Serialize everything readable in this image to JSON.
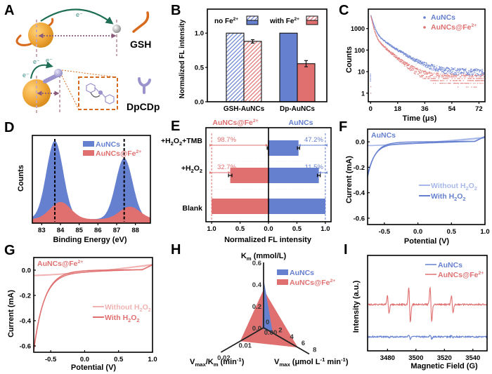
{
  "colors": {
    "blue": "#6680d0",
    "red": "#e07070",
    "blue_light": "#a9b8ea",
    "red_light": "#f1b2b2",
    "orange": "#d86a1e",
    "gold": "#f0a83a",
    "green": "#1d6e55",
    "purple": "#9a93cc",
    "pink_dash": "#c8a9b3"
  },
  "panels": {
    "A": {
      "letter": "A",
      "electron": "e⁻",
      "label_gsh": "GSH",
      "label_dpcdp": "DpCDp"
    }
  },
  "chart_data": [
    {
      "panel": "B",
      "type": "bar",
      "title": "",
      "ylabel": "Normalized FL intensity",
      "xlabel": "",
      "categories": [
        "GSH-AuNCs",
        "Dp-AuNCs"
      ],
      "series": [
        {
          "name": "no Fe2+",
          "values": [
            1.0,
            1.0
          ],
          "errors": [
            0,
            0
          ]
        },
        {
          "name": "with Fe2+",
          "values": [
            0.88,
            0.555
          ],
          "errors": [
            0.025,
            0.045
          ]
        }
      ],
      "hatched": [
        "GSH-AuNCs"
      ],
      "legend": [
        {
          "label": "no Fe",
          "sup": "2+"
        },
        {
          "label": "with Fe",
          "sup": "2+"
        }
      ],
      "ylim": [
        0,
        1.35
      ],
      "yticks": [
        0.0,
        0.5,
        1.0
      ],
      "ytick_labels": [
        "0.0",
        "0.5",
        "1.0"
      ],
      "legend_position": "top"
    },
    {
      "panel": "C",
      "type": "scatter",
      "ylabel": "Counts",
      "xlabel": "Time (μs)",
      "yscale": "log",
      "ylim": [
        0.4,
        8000
      ],
      "xlim": [
        -1.5,
        76
      ],
      "xticks": [
        0,
        18,
        36,
        54,
        72
      ],
      "yticks": [
        1,
        10,
        100,
        1000
      ],
      "series": [
        {
          "name": "AuNCs",
          "decay": {
            "A1": 3500,
            "tau1": 1.5,
            "A2": 700,
            "tau2": 9,
            "baseline": 10
          }
        },
        {
          "name": "AuNCs@Fe2+",
          "decay": {
            "A1": 3500,
            "tau1": 1.2,
            "A2": 500,
            "tau2": 7,
            "baseline": 5
          }
        }
      ],
      "legend": [
        {
          "label": "AuNCs",
          "sup": ""
        },
        {
          "label": "AuNCs@Fe",
          "sup": "2+"
        }
      ],
      "legend_position": "top-right"
    },
    {
      "panel": "D",
      "type": "area",
      "ylabel": "Counts",
      "xlabel": "Binding Energy (eV)",
      "xlim": [
        82.5,
        88.8
      ],
      "xticks": [
        83,
        84,
        85,
        86,
        87,
        88
      ],
      "ylim": [
        0,
        1.12
      ],
      "series": [
        {
          "name": "AuNCs",
          "peaks": [
            {
              "center": 83.7,
              "height": 1.0,
              "width": 0.45
            },
            {
              "center": 87.4,
              "height": 0.78,
              "width": 0.45
            }
          ]
        },
        {
          "name": "AuNCs@Fe2+",
          "peaks": [
            {
              "center": 84.0,
              "height": 0.22,
              "width": 0.55
            },
            {
              "center": 87.7,
              "height": 0.16,
              "width": 0.55
            }
          ],
          "offset": 0.05
        }
      ],
      "reference_lines": [
        83.7,
        87.4
      ],
      "legend": [
        {
          "label": "AuNCs",
          "sup": ""
        },
        {
          "label": "AuNCs@Fe",
          "sup": "2+"
        }
      ],
      "legend_position": "top-right"
    },
    {
      "panel": "E",
      "type": "bar",
      "orientation": "horizontal-mirrored",
      "xlabel": "Normalized FL intensity",
      "categories": [
        "+H2O2+TMB",
        "+H2O2",
        "Blank"
      ],
      "category_labels": [
        [
          {
            "t": "+H",
            "s": ""
          },
          {
            "t": "2",
            "s": "sub"
          },
          {
            "t": "O",
            "s": ""
          },
          {
            "t": "2",
            "s": "sub"
          },
          {
            "t": "+TMB",
            "s": ""
          }
        ],
        [
          {
            "t": "+H",
            "s": ""
          },
          {
            "t": "2",
            "s": "sub"
          },
          {
            "t": "O",
            "s": ""
          },
          {
            "t": "2",
            "s": "sub"
          }
        ],
        [
          {
            "t": "Blank",
            "s": ""
          }
        ]
      ],
      "series": [
        {
          "name": "AuNCs@Fe2+",
          "side": "left",
          "values": [
            0.013,
            0.673,
            1.0
          ],
          "errors": [
            0.01,
            0.03,
            0
          ],
          "annotations": [
            "98.7%",
            "32.7%",
            ""
          ]
        },
        {
          "name": "AuNCs",
          "side": "right",
          "values": [
            0.528,
            0.885,
            1.0
          ],
          "errors": [
            0.02,
            0.025,
            0
          ],
          "annotations": [
            "47.2%",
            "11.5%",
            ""
          ]
        }
      ],
      "header_left": {
        "label": "AuNCs@Fe",
        "sup": "2+"
      },
      "header_right": {
        "label": "AuNCs",
        "sup": ""
      },
      "xlim": [
        -1.1,
        1.1
      ],
      "xticks": [
        -1.0,
        -0.5,
        0.0,
        0.5,
        1.0
      ],
      "xtick_labels": [
        "1.0",
        "0.5",
        "0.0",
        "0.5",
        "1.0"
      ]
    },
    {
      "panel": "F",
      "type": "line",
      "ylabel": "Current (mA)",
      "xlabel": "Potential (V)",
      "xlim": [
        -0.75,
        1.0
      ],
      "ylim": [
        -0.65,
        0.1
      ],
      "xticks": [
        -0.5,
        0.0,
        0.5,
        1.0
      ],
      "yticks": [
        0.0,
        -0.2,
        -0.4,
        -0.6
      ],
      "inset_label": "AuNCs",
      "series": [
        {
          "name": "Without H2O2",
          "cv": {
            "min": -0.03,
            "minB": -0.035,
            "end": 0.03,
            "k": 0.0
          }
        },
        {
          "name": "With H2O2",
          "cv": {
            "min": -0.27,
            "minB": -0.25,
            "end": 0.03,
            "k": 1.0
          }
        }
      ],
      "legend": [
        {
          "parts": [
            {
              "t": "Without H",
              "s": ""
            },
            {
              "t": "2",
              "s": "sub"
            },
            {
              "t": "O",
              "s": ""
            },
            {
              "t": "2",
              "s": "sub"
            }
          ]
        },
        {
          "parts": [
            {
              "t": "With H",
              "s": ""
            },
            {
              "t": "2",
              "s": "sub"
            },
            {
              "t": "O",
              "s": ""
            },
            {
              "t": "2",
              "s": "sub"
            }
          ]
        }
      ],
      "legend_position": "center-right"
    },
    {
      "panel": "G",
      "type": "line",
      "ylabel": "Current (mA)",
      "xlabel": "Potential (V)",
      "xlim": [
        -0.75,
        1.0
      ],
      "ylim": [
        -0.65,
        0.1
      ],
      "xticks": [
        -0.5,
        0.0,
        0.5,
        1.0
      ],
      "yticks": [
        0.0,
        -0.2,
        -0.4,
        -0.6
      ],
      "inset_label": {
        "label": "AuNCs@Fe",
        "sup": "2+"
      },
      "series": [
        {
          "name": "Without H2O2",
          "cv": {
            "min": -0.04,
            "minB": -0.05,
            "end": 0.04,
            "k": 0.0
          }
        },
        {
          "name": "With H2O2",
          "cv": {
            "min": -0.64,
            "minB": -0.62,
            "end": 0.04,
            "k": 2.0
          }
        }
      ],
      "legend": [
        {
          "parts": [
            {
              "t": "Without H",
              "s": ""
            },
            {
              "t": "2",
              "s": "sub"
            },
            {
              "t": "O",
              "s": ""
            },
            {
              "t": "2",
              "s": "sub"
            }
          ]
        },
        {
          "parts": [
            {
              "t": "With H",
              "s": ""
            },
            {
              "t": "2",
              "s": "sub"
            },
            {
              "t": "O",
              "s": ""
            },
            {
              "t": "2",
              "s": "sub"
            }
          ]
        }
      ],
      "legend_position": "center-right"
    },
    {
      "panel": "H",
      "type": "radar",
      "axes": [
        {
          "name": "Km (mmol/L)",
          "parts": [
            {
              "t": "K",
              "s": ""
            },
            {
              "t": "m",
              "s": "sub"
            },
            {
              "t": " (mmol/L)",
              "s": ""
            }
          ],
          "max": 0.6,
          "ticks": [
            0.0,
            0.2,
            0.4,
            0.6
          ],
          "tick_labels": [
            "0.0",
            "0.2",
            "0.4",
            "0.6"
          ]
        },
        {
          "name": "Vmax (μmol L-1 min-1)",
          "parts": [
            {
              "t": "V",
              "s": ""
            },
            {
              "t": "max",
              "s": "sub"
            },
            {
              "t": " (μmol L",
              "s": ""
            },
            {
              "t": "-1",
              "s": "sup"
            },
            {
              "t": " min",
              "s": ""
            },
            {
              "t": "-1",
              "s": "sup"
            },
            {
              "t": ")",
              "s": ""
            }
          ],
          "max": 8,
          "ticks": [
            0,
            2,
            4,
            6,
            8
          ],
          "tick_labels": [
            "0",
            "2",
            "4",
            "6",
            "8"
          ]
        },
        {
          "name": "Vmax/Km (min-1)",
          "parts": [
            {
              "t": "V",
              "s": ""
            },
            {
              "t": "max",
              "s": "sub"
            },
            {
              "t": "/K",
              "s": ""
            },
            {
              "t": "m",
              "s": "sub"
            },
            {
              "t": " (min",
              "s": ""
            },
            {
              "t": "-1",
              "s": "sup"
            },
            {
              "t": ")",
              "s": ""
            }
          ],
          "max": 0.02,
          "ticks": [
            0.0,
            0.01,
            0.02
          ],
          "tick_labels": [
            "0.00",
            "0.01",
            "0.02"
          ]
        }
      ],
      "series": [
        {
          "name": "AuNCs@Fe2+",
          "values": [
            0.35,
            6.0,
            0.011
          ]
        },
        {
          "name": "AuNCs",
          "values": [
            0.45,
            1.6,
            0.0006
          ]
        }
      ],
      "legend": [
        {
          "label": "AuNCs",
          "sup": ""
        },
        {
          "label": "AuNCs@Fe",
          "sup": "2+"
        }
      ],
      "legend_position": "top-right"
    },
    {
      "panel": "I",
      "type": "line",
      "ylabel": "Intensity (a.u.)",
      "xlabel": "Magnetic Field (G)",
      "xlim": [
        3466,
        3550
      ],
      "xticks": [
        3480,
        3500,
        3520,
        3540
      ],
      "series": [
        {
          "name": "AuNCs",
          "peaks": [
            3480.5,
            3495.5,
            3510.5,
            3525.5
          ],
          "amplitudes": [
            0.1,
            0.3,
            0.3,
            0.1
          ],
          "offset": 0.15
        },
        {
          "name": "AuNCs@Fe2+",
          "peaks": [
            3480.5,
            3495.5,
            3510.5,
            3525.5
          ],
          "amplitudes": [
            1.0,
            2.0,
            2.0,
            1.0
          ],
          "offset": 0.6
        }
      ],
      "legend": [
        {
          "label": "AuNCs",
          "sup": ""
        },
        {
          "label": "AuNCs@Fe",
          "sup": "2+"
        }
      ],
      "legend_position": "top-right"
    }
  ]
}
